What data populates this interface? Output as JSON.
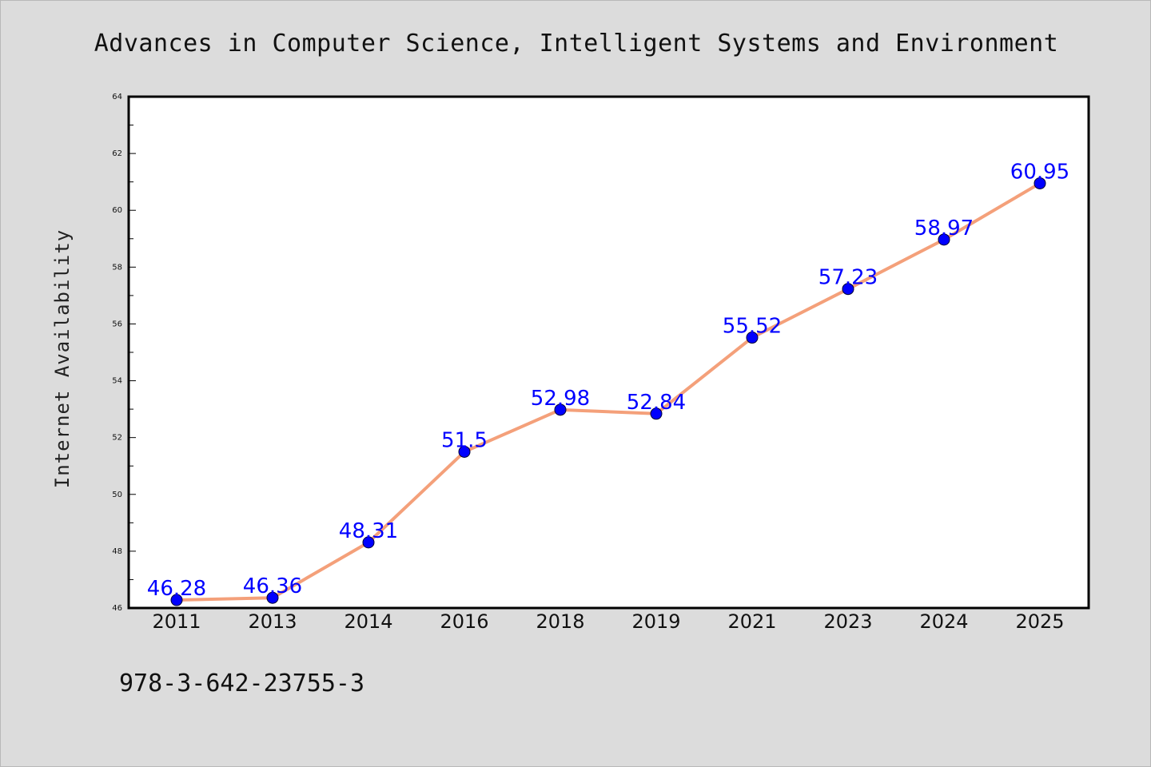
{
  "chart_data": {
    "type": "line",
    "title": "Advances in Computer Science, Intelligent Systems and Environment",
    "ylabel": "Internet Availability",
    "xlabel": "",
    "categories": [
      "2011",
      "2013",
      "2014",
      "2016",
      "2018",
      "2019",
      "2021",
      "2023",
      "2024",
      "2025"
    ],
    "values": [
      46.28,
      46.36,
      48.31,
      51.5,
      52.98,
      52.84,
      55.52,
      57.23,
      58.97,
      60.95
    ],
    "data_labels": [
      "46.28",
      "46.36",
      "48.31",
      "51.5",
      "52.98",
      "52.84",
      "55.52",
      "57.23",
      "58.97",
      "60.95"
    ],
    "ylim": [
      46,
      64
    ],
    "yticks": [
      "46",
      "48",
      "50",
      "52",
      "54",
      "56",
      "58",
      "60",
      "62",
      "64"
    ],
    "grid": false,
    "legend": "none",
    "line_color": "#f4a07a",
    "marker_color": "#0000ff",
    "label_color": "#0000ff"
  },
  "footer": {
    "isbn": "978-3-642-23755-3"
  }
}
